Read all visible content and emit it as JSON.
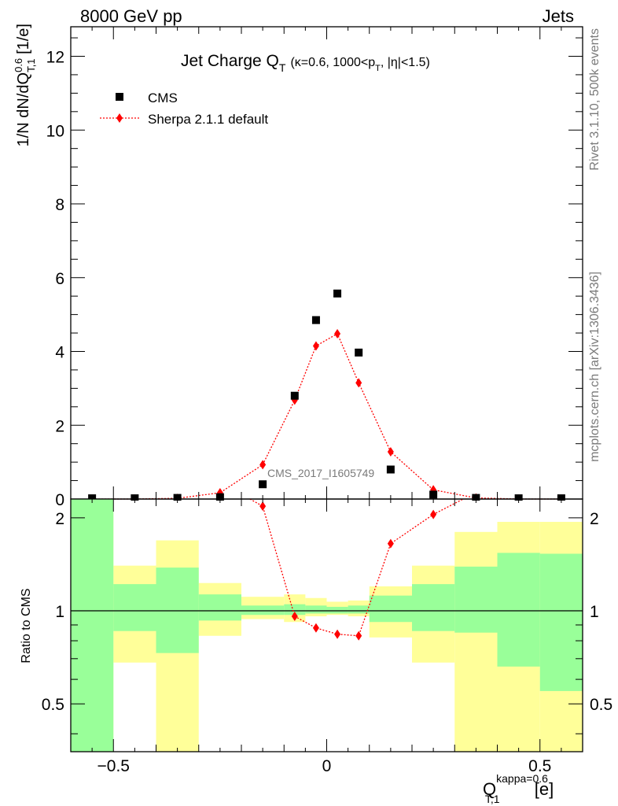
{
  "header": {
    "left": "8000 GeV pp",
    "right": "Jets"
  },
  "side": {
    "rivet": "Rivet 3.1.10,  500k events",
    "mcplots": "mcplots.cern.ch [arXiv:1306.3436]"
  },
  "colors": {
    "data": "#000000",
    "mc": "#ff0000",
    "band_inner": "#99ff99",
    "band_outer": "#ffff99"
  },
  "chart_data": [
    {
      "type": "scatter",
      "title": "Jet Charge Q",
      "title_sub": "T",
      "title_cond": "(κ=0.6, 1000<p",
      "title_cond_sub": "T",
      "title_cond_end": ", |η|<1.5)",
      "ylabel": "1/N dN/dQ",
      "ylabel_sup": "0.6",
      "ylabel_sub": "T,1",
      "ylabel_unit": " [1/e]",
      "watermark": "CMS_2017_I1605749",
      "xlim": [
        -0.6,
        0.6
      ],
      "ylim": [
        0,
        12.8
      ],
      "yticks": [
        0,
        2,
        4,
        6,
        8,
        10,
        12
      ],
      "ytick_labels": [
        "0",
        "2",
        "4",
        "6",
        "8",
        "10",
        "12"
      ],
      "legend_position": "top-left",
      "series": [
        {
          "name": "CMS",
          "marker": "square",
          "x": [
            -0.55,
            -0.45,
            -0.35,
            -0.25,
            -0.15,
            -0.075,
            -0.025,
            0.025,
            0.075,
            0.15,
            0.25,
            0.35,
            0.45,
            0.55
          ],
          "y": [
            0.02,
            0.02,
            0.03,
            0.05,
            0.4,
            2.8,
            4.85,
            5.57,
            3.97,
            0.8,
            0.12,
            0.03,
            0.02,
            0.02
          ]
        },
        {
          "name": "Sherpa 2.1.1 default",
          "marker": "diamond",
          "x": [
            -0.55,
            -0.45,
            -0.35,
            -0.25,
            -0.15,
            -0.075,
            -0.025,
            0.025,
            0.075,
            0.15,
            0.25,
            0.35,
            0.45,
            0.55
          ],
          "y": [
            0.0,
            0.0,
            0.02,
            0.17,
            0.93,
            2.68,
            4.15,
            4.48,
            3.15,
            1.28,
            0.25,
            0.03,
            0.0,
            0.0
          ]
        }
      ]
    },
    {
      "type": "line",
      "ylabel": "Ratio to CMS",
      "xlabel": "Q",
      "xlabel_sup": "kappa=0.6",
      "xlabel_sub": "T,1",
      "xlabel_unit": " [e]",
      "xlim": [
        -0.6,
        0.6
      ],
      "ylim": [
        0.35,
        2.3
      ],
      "yticks": [
        0.5,
        1,
        2
      ],
      "ytick_labels": [
        "0.5",
        "1",
        "2"
      ],
      "xticks": [
        -0.5,
        0,
        0.5
      ],
      "xtick_labels": [
        "−0.5",
        "0",
        "0.5"
      ],
      "reference_line": 1,
      "bins": [
        -0.6,
        -0.5,
        -0.4,
        -0.3,
        -0.2,
        -0.1,
        -0.05,
        0.0,
        0.05,
        0.1,
        0.2,
        0.3,
        0.4,
        0.5,
        0.6
      ],
      "band_inner": {
        "lo": [
          0.35,
          0.86,
          0.73,
          0.93,
          0.97,
          0.97,
          0.98,
          0.98,
          0.98,
          0.92,
          0.86,
          0.85,
          0.66,
          0.55
        ],
        "hi": [
          2.3,
          1.22,
          1.38,
          1.13,
          1.04,
          1.05,
          1.04,
          1.03,
          1.04,
          1.12,
          1.22,
          1.39,
          1.54,
          1.53
        ]
      },
      "band_outer": {
        "lo": [
          0.35,
          0.68,
          0.35,
          0.83,
          0.94,
          0.92,
          0.96,
          0.97,
          0.96,
          0.82,
          0.68,
          0.35,
          0.35,
          0.35
        ],
        "hi": [
          2.3,
          1.4,
          1.69,
          1.23,
          1.11,
          1.13,
          1.1,
          1.07,
          1.08,
          1.2,
          1.4,
          1.8,
          1.94,
          1.94
        ]
      },
      "series": [
        {
          "name": "Sherpa 2.1.1 default",
          "x": [
            -0.15,
            -0.075,
            -0.025,
            0.025,
            0.075,
            0.15,
            0.25
          ],
          "y": [
            2.18,
            0.96,
            0.88,
            0.84,
            0.83,
            1.65,
            2.05
          ]
        }
      ]
    }
  ]
}
